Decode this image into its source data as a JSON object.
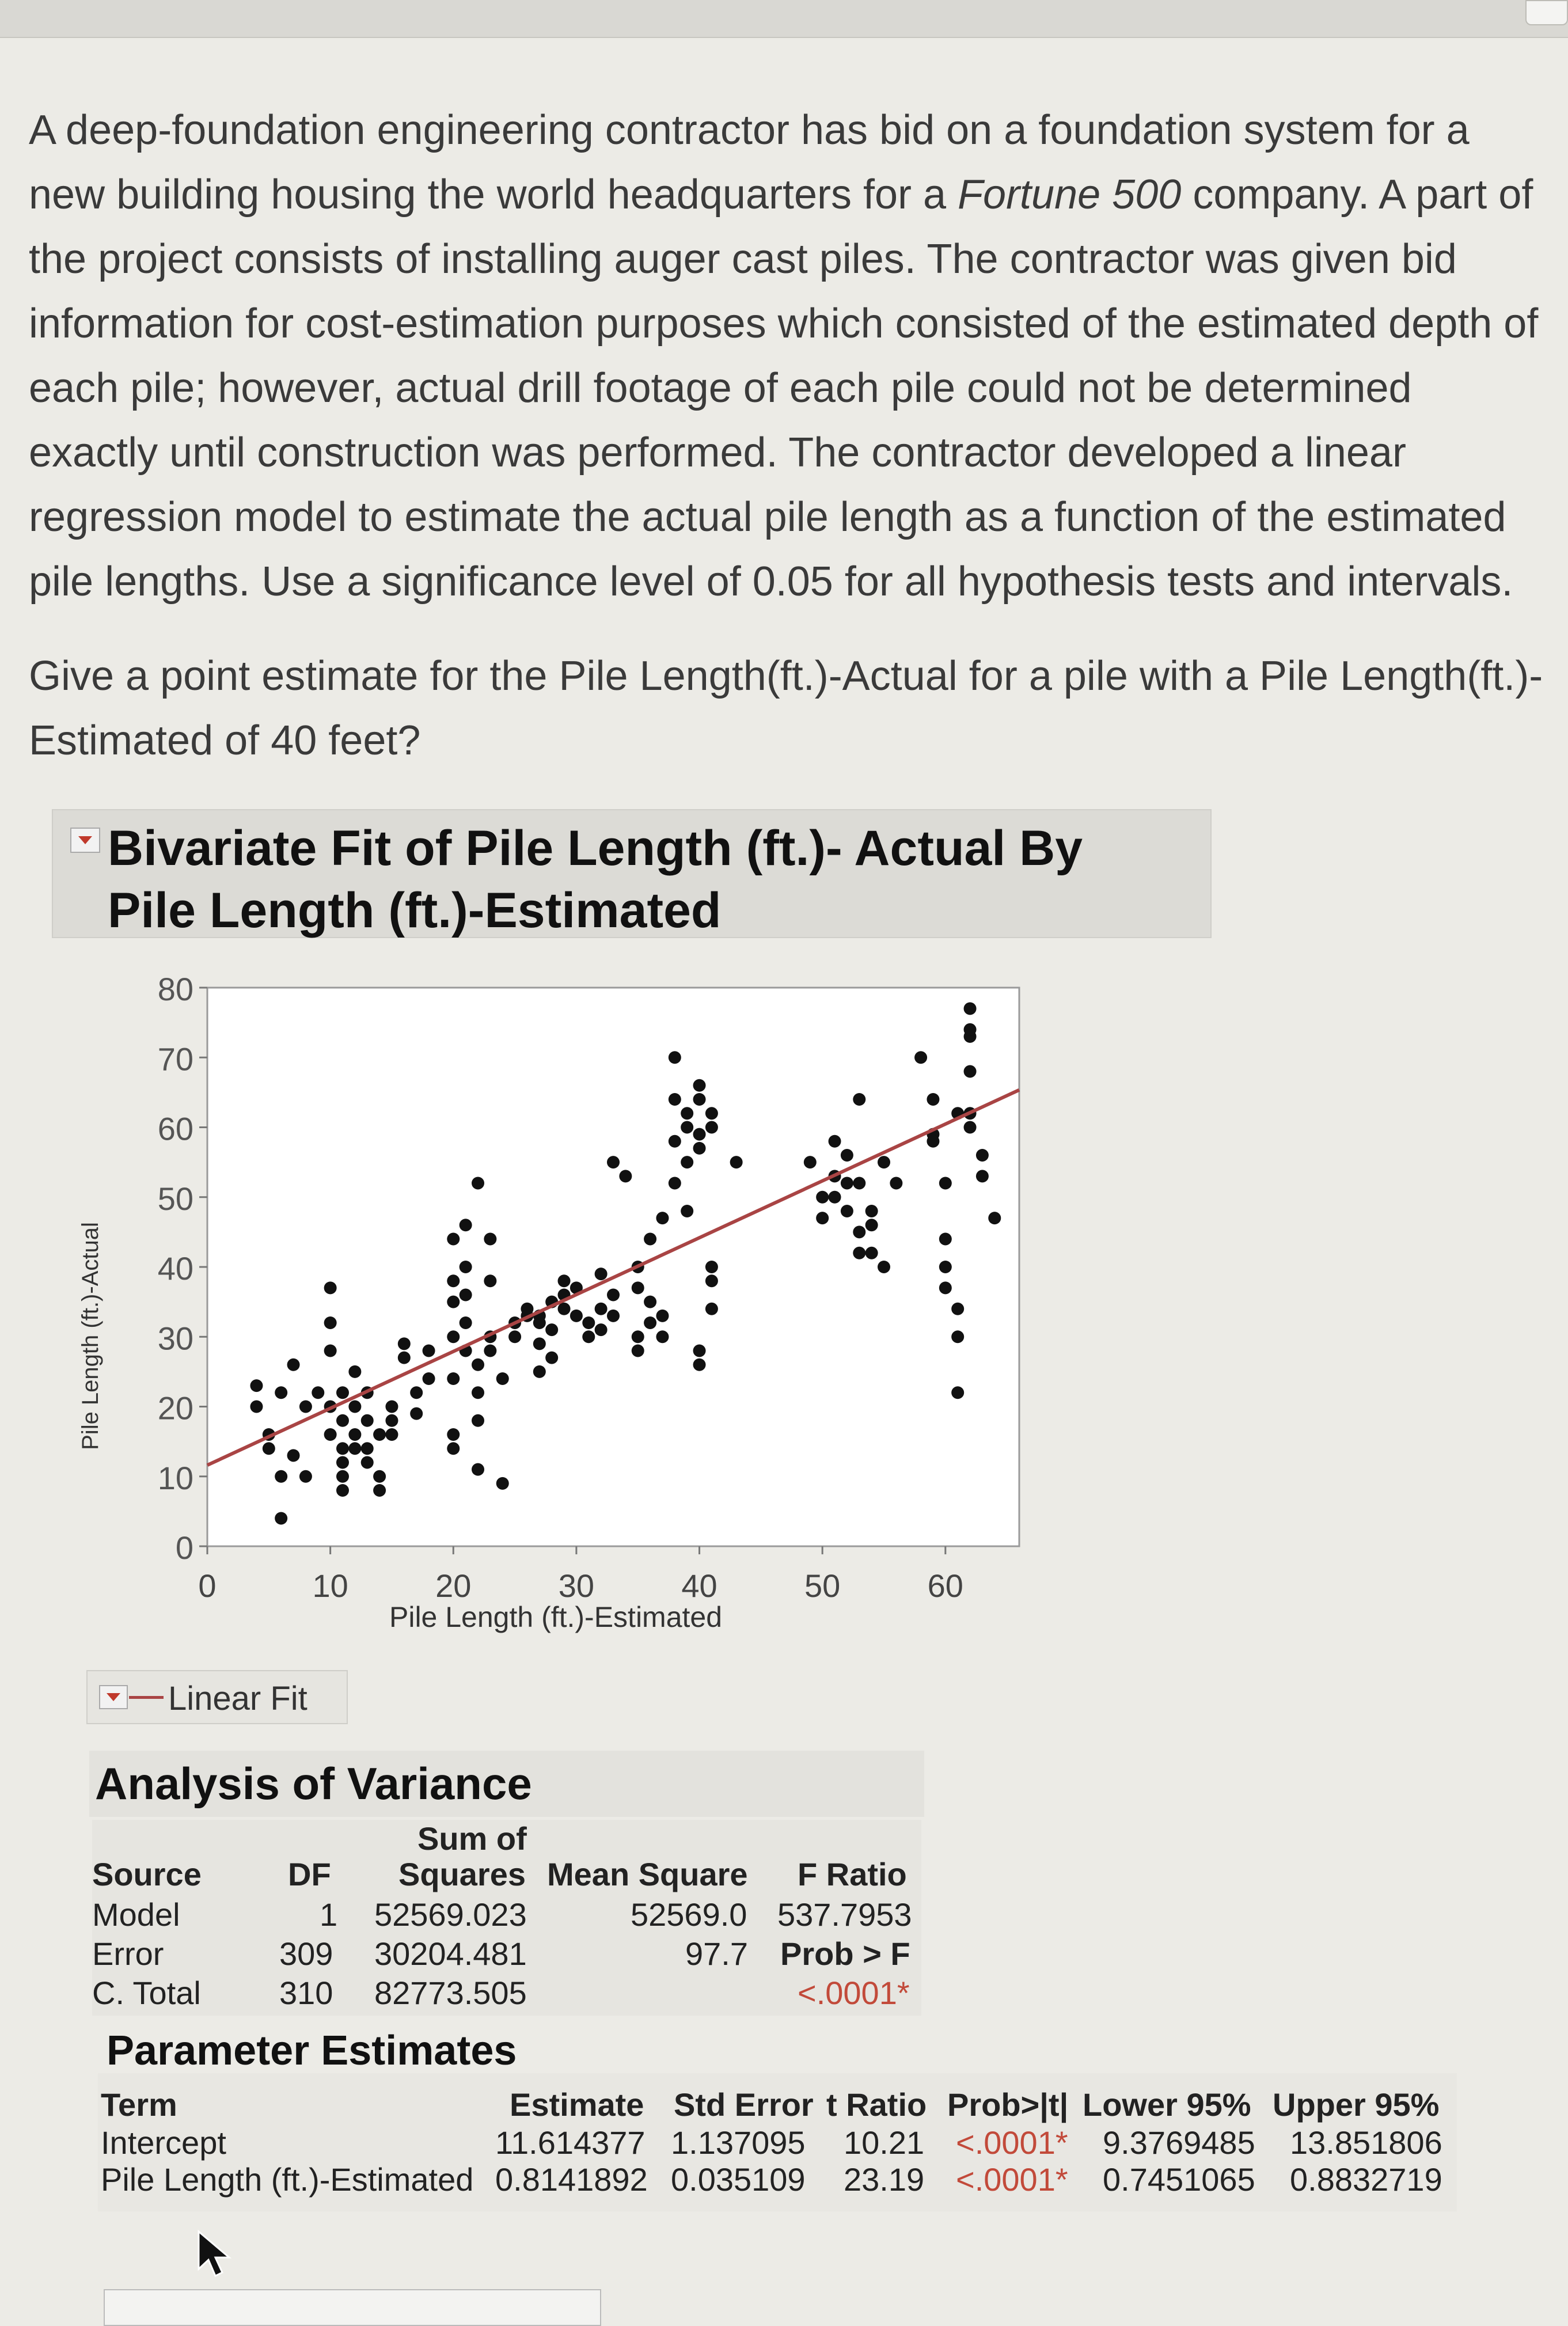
{
  "question": {
    "intro_parts": [
      "A deep-foundation engineering contractor has bid on a foundation system for a new building housing the world headquarters for a ",
      "Fortune 500",
      " company. A part of the project consists of installing auger cast piles. The contractor was given bid information for cost-estimation purposes which consisted of the estimated depth of each pile; however, actual drill footage of each pile could not be determined exactly until construction was performed. The contractor developed a linear regression model to estimate the actual pile length as a function of the estimated pile lengths. Use a significance level of 0.05 for all hypothesis tests and intervals."
    ],
    "prompt": "Give a point estimate for the Pile Length(ft.)-Actual for a pile with a Pile Length(ft.)-Estimated of 40 feet?"
  },
  "report": {
    "title": "Bivariate Fit of Pile Length (ft.)- Actual By Pile Length (ft.)-Estimated",
    "fit_label": "Linear Fit"
  },
  "chart_data": {
    "type": "scatter",
    "title": "Bivariate Fit of Pile Length (ft.)- Actual By Pile Length (ft.)-Estimated",
    "xlabel": "Pile Length (ft.)-Estimated",
    "ylabel": "Pile Length (ft.)-Actual",
    "xlim": [
      0,
      66
    ],
    "ylim": [
      0,
      80
    ],
    "x_ticks": [
      0,
      10,
      20,
      30,
      40,
      50,
      60
    ],
    "y_ticks": [
      0,
      10,
      20,
      30,
      40,
      50,
      60,
      70,
      80
    ],
    "grid": false,
    "fit_line": {
      "intercept": 11.614377,
      "slope": 0.8141892,
      "color": "#a94444"
    },
    "points": [
      [
        4,
        23
      ],
      [
        4,
        20
      ],
      [
        5,
        16
      ],
      [
        5,
        14
      ],
      [
        6,
        4
      ],
      [
        6,
        10
      ],
      [
        6,
        22
      ],
      [
        7,
        26
      ],
      [
        7,
        13
      ],
      [
        8,
        20
      ],
      [
        8,
        10
      ],
      [
        9,
        22
      ],
      [
        10,
        32
      ],
      [
        10,
        37
      ],
      [
        10,
        28
      ],
      [
        10,
        20
      ],
      [
        10,
        16
      ],
      [
        11,
        18
      ],
      [
        11,
        22
      ],
      [
        11,
        14
      ],
      [
        11,
        12
      ],
      [
        11,
        10
      ],
      [
        11,
        8
      ],
      [
        12,
        25
      ],
      [
        12,
        20
      ],
      [
        12,
        16
      ],
      [
        12,
        14
      ],
      [
        13,
        22
      ],
      [
        13,
        18
      ],
      [
        13,
        14
      ],
      [
        13,
        12
      ],
      [
        14,
        16
      ],
      [
        14,
        10
      ],
      [
        14,
        8
      ],
      [
        15,
        20
      ],
      [
        15,
        18
      ],
      [
        15,
        16
      ],
      [
        16,
        29
      ],
      [
        16,
        27
      ],
      [
        17,
        22
      ],
      [
        17,
        19
      ],
      [
        18,
        28
      ],
      [
        18,
        24
      ],
      [
        20,
        35
      ],
      [
        20,
        30
      ],
      [
        20,
        24
      ],
      [
        20,
        38
      ],
      [
        20,
        44
      ],
      [
        20,
        16
      ],
      [
        20,
        14
      ],
      [
        21,
        32
      ],
      [
        21,
        36
      ],
      [
        21,
        28
      ],
      [
        21,
        40
      ],
      [
        21,
        46
      ],
      [
        22,
        22
      ],
      [
        22,
        18
      ],
      [
        22,
        26
      ],
      [
        22,
        11
      ],
      [
        22,
        52
      ],
      [
        23,
        30
      ],
      [
        23,
        28
      ],
      [
        23,
        38
      ],
      [
        23,
        44
      ],
      [
        24,
        24
      ],
      [
        24,
        9
      ],
      [
        25,
        32
      ],
      [
        25,
        30
      ],
      [
        26,
        34
      ],
      [
        26,
        33
      ],
      [
        27,
        33
      ],
      [
        27,
        32
      ],
      [
        27,
        29
      ],
      [
        27,
        25
      ],
      [
        28,
        35
      ],
      [
        28,
        31
      ],
      [
        28,
        27
      ],
      [
        29,
        38
      ],
      [
        29,
        36
      ],
      [
        29,
        34
      ],
      [
        30,
        37
      ],
      [
        30,
        33
      ],
      [
        31,
        32
      ],
      [
        31,
        30
      ],
      [
        32,
        34
      ],
      [
        32,
        39
      ],
      [
        32,
        31
      ],
      [
        33,
        36
      ],
      [
        33,
        33
      ],
      [
        35,
        40
      ],
      [
        35,
        37
      ],
      [
        33,
        55
      ],
      [
        34,
        53
      ],
      [
        35,
        28
      ],
      [
        35,
        30
      ],
      [
        36,
        32
      ],
      [
        36,
        35
      ],
      [
        36,
        44
      ],
      [
        37,
        30
      ],
      [
        37,
        33
      ],
      [
        37,
        47
      ],
      [
        38,
        52
      ],
      [
        38,
        58
      ],
      [
        38,
        64
      ],
      [
        38,
        70
      ],
      [
        39,
        62
      ],
      [
        39,
        60
      ],
      [
        39,
        55
      ],
      [
        39,
        48
      ],
      [
        40,
        26
      ],
      [
        40,
        28
      ],
      [
        40,
        64
      ],
      [
        40,
        66
      ],
      [
        40,
        59
      ],
      [
        40,
        57
      ],
      [
        41,
        62
      ],
      [
        41,
        60
      ],
      [
        41,
        40
      ],
      [
        41,
        38
      ],
      [
        41,
        34
      ],
      [
        43,
        55
      ],
      [
        49,
        55
      ],
      [
        50,
        50
      ],
      [
        50,
        47
      ],
      [
        51,
        58
      ],
      [
        51,
        53
      ],
      [
        51,
        50
      ],
      [
        52,
        56
      ],
      [
        52,
        52
      ],
      [
        52,
        48
      ],
      [
        53,
        45
      ],
      [
        53,
        42
      ],
      [
        53,
        64
      ],
      [
        53,
        52
      ],
      [
        54,
        48
      ],
      [
        54,
        46
      ],
      [
        54,
        42
      ],
      [
        55,
        40
      ],
      [
        55,
        55
      ],
      [
        56,
        52
      ],
      [
        58,
        70
      ],
      [
        59,
        64
      ],
      [
        59,
        59
      ],
      [
        59,
        58
      ],
      [
        60,
        52
      ],
      [
        60,
        44
      ],
      [
        60,
        40
      ],
      [
        60,
        37
      ],
      [
        61,
        34
      ],
      [
        61,
        30
      ],
      [
        61,
        22
      ],
      [
        61,
        62
      ],
      [
        62,
        62
      ],
      [
        62,
        60
      ],
      [
        62,
        68
      ],
      [
        62,
        73
      ],
      [
        62,
        74
      ],
      [
        62,
        77
      ],
      [
        63,
        53
      ],
      [
        63,
        56
      ],
      [
        64,
        47
      ]
    ]
  },
  "anova": {
    "title": "Analysis of Variance",
    "headers": {
      "source": "Source",
      "df": "DF",
      "ss_top": "Sum of",
      "ss_bottom": "Squares",
      "ms": "Mean Square",
      "f": "F Ratio"
    },
    "rows": [
      {
        "source": "Model",
        "df": "1",
        "ss": "52569.023",
        "ms": "52569.0",
        "f": "537.7953"
      },
      {
        "source": "Error",
        "df": "309",
        "ss": "30204.481",
        "ms": "97.7",
        "f": "Prob > F"
      },
      {
        "source": "C. Total",
        "df": "310",
        "ss": "82773.505",
        "ms": "",
        "f": "<.0001*"
      }
    ]
  },
  "parameter_estimates": {
    "title": "Parameter Estimates",
    "headers": [
      "Term",
      "Estimate",
      "Std Error",
      "t Ratio",
      "Prob>|t|",
      "Lower 95%",
      "Upper 95%"
    ],
    "rows": [
      {
        "term": "Intercept",
        "estimate": "11.614377",
        "std_error": "1.137095",
        "t_ratio": "10.21",
        "prob": "<.0001*",
        "lower": "9.3769485",
        "upper": "13.851806"
      },
      {
        "term": "Pile Length (ft.)-Estimated",
        "estimate": "0.8141892",
        "std_error": "0.035109",
        "t_ratio": "23.19",
        "prob": "<.0001*",
        "lower": "0.7451065",
        "upper": "0.8832719"
      }
    ]
  },
  "colors": {
    "fit_line": "#a94444",
    "significant_p": "#c24a3a",
    "report_header": "#dcdbd6"
  }
}
